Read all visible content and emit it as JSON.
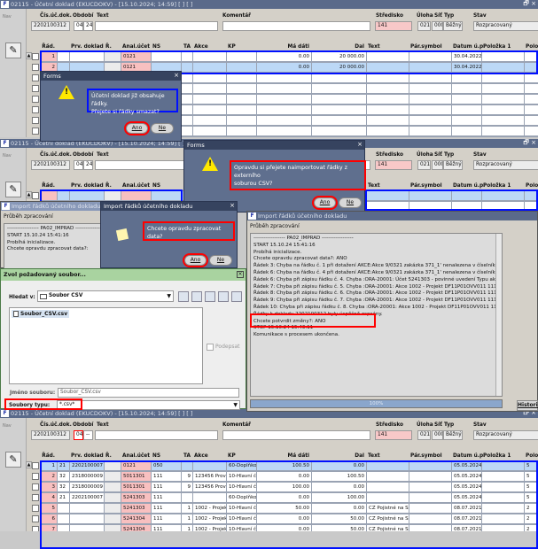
{
  "app": {
    "title": "02115 - Účetní doklad (EKUCDOKV) - [15.10.2024; 14:59] [ ] [ ]",
    "logo": "F",
    "nav": "Nav"
  },
  "header": {
    "labels": {
      "doc": "Čís.úč.dok.",
      "obdobi": "Období",
      "text": "Text",
      "komentar": "Komentář",
      "stredisko": "Středisko",
      "uloha": "Úloha",
      "sit": "Síť",
      "typ": "Typ",
      "stav": "Stav"
    },
    "values": {
      "doc": "2202100312",
      "obdobi_m": "04",
      "obdobi_y": "24",
      "obdobi_y_last": "--",
      "stredisko": "141",
      "uloha": "021",
      "sit": "000",
      "typ": "Běžný",
      "stav": "Rozpracovaný"
    }
  },
  "grid": {
    "columns": [
      "Řád.",
      "",
      "Prv. doklad",
      "Ř.",
      "Anal.účet",
      "NS",
      "TA",
      "Akce",
      "KP",
      "Má dáti",
      "Dal",
      "Text",
      "Pár.symbol",
      "Datum ú.p.",
      "Položka 1",
      "Polož"
    ],
    "panel1_rows": [
      [
        "1",
        "",
        "",
        "",
        "0121",
        "",
        "",
        "",
        "",
        "0.00",
        "20 000.00",
        "",
        "",
        "30.04.2022",
        "",
        ""
      ],
      [
        "2",
        "",
        "",
        "",
        "0121",
        "",
        "",
        "",
        "",
        "0.00",
        "20 000.00",
        "",
        "",
        "30.04.2022",
        "",
        ""
      ]
    ],
    "panel4_rows": [
      [
        "1",
        "21",
        "2202100007",
        "",
        "0121",
        "050",
        "",
        "",
        "60-Doplňkov",
        "100.50",
        "0.00",
        "",
        "",
        "05.05.2024",
        "",
        "5"
      ],
      [
        "2",
        "32",
        "2318000009",
        "",
        "5011301",
        "111",
        "9",
        "123456 Provo",
        "10-Hlavní či",
        "0.00",
        "100.50",
        "",
        "",
        "05.05.2024",
        "",
        "5"
      ],
      [
        "3",
        "32",
        "2318000009",
        "",
        "5011301",
        "111",
        "9",
        "123456 Provo",
        "10-Hlavní či",
        "100.00",
        "0.00",
        "",
        "",
        "05.05.2024",
        "",
        "5"
      ],
      [
        "4",
        "21",
        "2202100007",
        "",
        "5241303",
        "111",
        "",
        "",
        "60-Doplňkov",
        "0.00",
        "100.00",
        "",
        "",
        "05.05.2024",
        "",
        "5"
      ],
      [
        "5",
        "",
        "",
        "",
        "5241303",
        "111",
        "1",
        "1002 - Projekt",
        "10-Hlavní či",
        "50.00",
        "0.00",
        "CZ Pojistné na SZ",
        "",
        "08.07.2021",
        "",
        "2"
      ],
      [
        "6",
        "",
        "",
        "",
        "5241304",
        "111",
        "1",
        "1002 - Projekt",
        "10-Hlavní či",
        "0.00",
        "50.00",
        "CZ Pojistné na SZ",
        "",
        "08.07.2021",
        "",
        "2"
      ],
      [
        "7",
        "",
        "",
        "",
        "5241304",
        "111",
        "1",
        "1002 - Projekt",
        "10-Hlavní či",
        "0.00",
        "50.00",
        "CZ Pojistné na SZ",
        "",
        "08.07.2021",
        "",
        "2"
      ],
      [
        "8",
        "",
        "",
        "",
        "5241304",
        "111",
        "1",
        "1002 - Projekt",
        "10-Hlavní či",
        "50.00",
        "0.00",
        "CZ Pojistné na SZ",
        "",
        "08.07.2021",
        "",
        "2"
      ]
    ]
  },
  "dialog_delete": {
    "title": "Forms",
    "line1": "Účetní doklad již obsahuje řádky.",
    "line2": "Přejete si řádky smazat?",
    "yes": "Ano",
    "no": "Ne"
  },
  "dialog_import": {
    "title": "Forms",
    "line1": "Opravdu si přejete naimportovat řádky z externího",
    "line2": "soburou CSV?",
    "yes": "Ano",
    "no": "Ne"
  },
  "dialog_process": {
    "title": "Import řádků účetního dokladu",
    "message": "Chcete opravdu zpracovat data?",
    "yes": "Ano",
    "no": "Ne"
  },
  "import_window_left": {
    "title": "Import řádků účetního dokladu",
    "progress_label": "Průběh zpracování",
    "log": [
      "------------------ PA02_IMPRAD ------------------",
      "START 15.10.24 15:41:16",
      "Probíhá inicializace.",
      "Chcete opravdu zpracovat data?:"
    ]
  },
  "import_window_right": {
    "title": "Import řádků účetního dokladu",
    "progress_label": "Průběh zpracování",
    "log": [
      "------------------ PA02_IMPRAD ------------------",
      "START 15.10.24 15:41:16",
      "Probíhá inicializace.",
      "Chcete opravdu zpracovat data?: ANO",
      "Řádek 3: Chyba na řádku č. 1 při dotažení AKCE:Akce 9/0321 zakázka 371_1' nenalezena v číselníku.",
      "Řádek 6: Chyba na řádku č. 4 při dotažení AKCE:Akce 9/0321 zakázka 371_1' nenalezena v číselníku.",
      "Řádek 6: Chyba při zápisu řádku č. 4. Chyba :ORA-20001: Účet 5241303 - povinné uvedení Typu akce",
      "Řádek 7: Chyba při zápisu řádku č. 5. Chyba :ORA-20001: Akce 1002 - Projekt DF11P01OVV011 111 je platn",
      "Řádek 8: Chyba při zápisu řádku č. 6. Chyba :ORA-20001: Akce 1002 - Projekt DF11P01OVV011 111 je platn",
      "Řádek 9: Chyba při zápisu řádku č. 7. Chyba :ORA-20001: Akce 1002 - Projekt DF11P01OVV011 111 je platn",
      "Řádek 10: Chyba při zápisu řádku č. 8. Chyba :ORA-20001: Akce 1002 - Projekt DF11P01OVV011 111 je pla",
      "Řádky k dokladu 2202100312 byly úspěšně zapsány.",
      "Chcete potvrdit změny?: ANO",
      "STOP 15.10.24 15:43:11",
      "Komunikace s procesem ukončena."
    ],
    "progress": "100%",
    "progress_value": 100,
    "history": "Historie"
  },
  "file_chooser": {
    "title": "Zvol požadovaný soubor...",
    "look_in_label": "Hledat v:",
    "look_in_value": "Soubor CSV",
    "files": [
      "Soubor_CSV.csv"
    ],
    "sign_label": "Podepsat",
    "filename_label": "Jméno souboru:",
    "filename_value": "Soubor_CSV.csv",
    "filetype_label": "Soubory typu:",
    "filetype_value": "*.csv*"
  },
  "colors": {
    "title_bar": "#5a6a8a",
    "required_field": "#f8c0c0",
    "selected_row": "#bcd8f6",
    "highlight_blue": "#0010ff",
    "highlight_red": "#ff0000",
    "dialog": "#5f6f8e",
    "chooser_title": "#a9d3a0"
  }
}
